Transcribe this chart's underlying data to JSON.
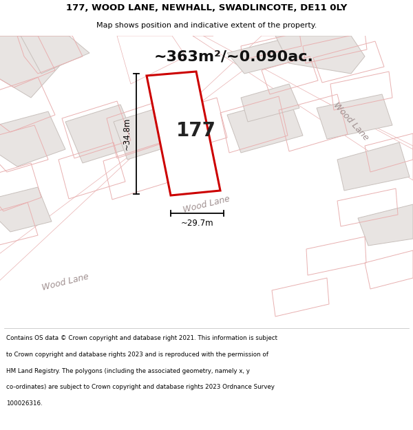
{
  "title_line1": "177, WOOD LANE, NEWHALL, SWADLINCOTE, DE11 0LY",
  "title_line2": "Map shows position and indicative extent of the property.",
  "area_text": "~363m²/~0.090ac.",
  "number_label": "177",
  "dim_height": "~34.8m",
  "dim_width": "~29.7m",
  "footer_lines": [
    "Contains OS data © Crown copyright and database right 2021. This information is subject",
    "to Crown copyright and database rights 2023 and is reproduced with the permission of",
    "HM Land Registry. The polygons (including the associated geometry, namely x, y",
    "co-ordinates) are subject to Crown copyright and database rights 2023 Ordnance Survey",
    "100026316."
  ],
  "map_bg": "#f7f5f4",
  "road_fill": "#ffffff",
  "block_fill": "#e8e4e2",
  "block_edge": "#c8c0bc",
  "parcel_edge": "#e8b0b0",
  "property_edge": "#cc0000",
  "dim_color": "#000000",
  "road_label_color": "#a09090",
  "area_text_color": "#111111",
  "number_color": "#222222",
  "title_color": "#000000",
  "footer_color": "#000000"
}
